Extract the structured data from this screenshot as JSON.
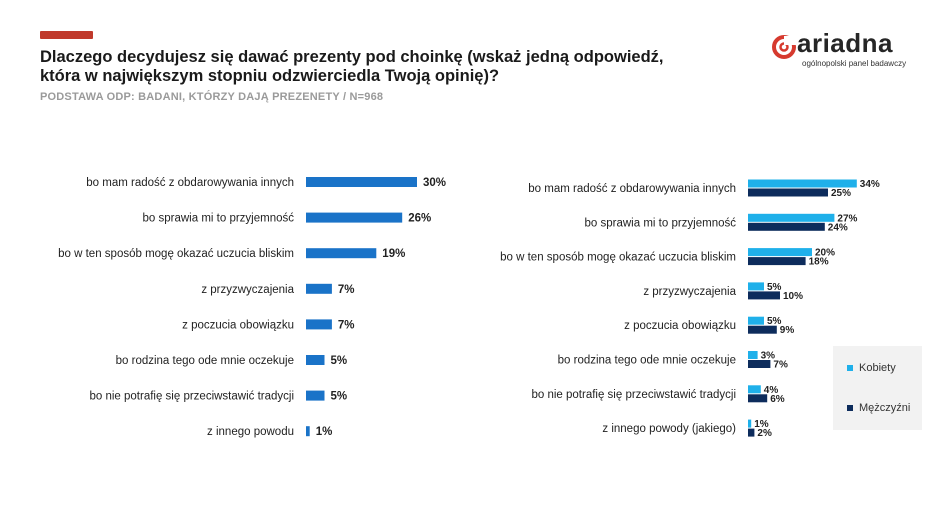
{
  "header": {
    "title": "Dlaczego decydujesz się dawać prezenty pod choinkę (wskaż jedną odpowiedź, która w największym stopniu odzwierciedla Twoją opinię)?",
    "base": "PODSTAWA ODP: BADANI, KTÓRZY DAJĄ PREZENETY / N=968"
  },
  "logo": {
    "name": "ariadna",
    "tagline": "ogólnopolski panel badawczy"
  },
  "colors": {
    "accent": "#c0392b",
    "total": "#1a73c8",
    "women": "#1fb0ea",
    "men": "#0d2c5c"
  },
  "chart_data": [
    {
      "type": "bar",
      "orientation": "horizontal",
      "title": "",
      "categories": [
        "bo mam radość z obdarowywania innych",
        "bo sprawia mi to przyjemność",
        "bo w ten sposób mogę okazać uczucia bliskim",
        "z przyzwyczajenia",
        "z poczucia obowiązku",
        "bo rodzina tego ode mnie oczekuje",
        "bo nie potrafię się przeciwstawić tradycji",
        "z innego powodu"
      ],
      "values": [
        30,
        26,
        19,
        7,
        7,
        5,
        5,
        1
      ],
      "labels": [
        "30%",
        "26%",
        "19%",
        "7%",
        "7%",
        "5%",
        "5%",
        "1%"
      ],
      "unit": "%"
    },
    {
      "type": "bar",
      "orientation": "horizontal",
      "title": "",
      "categories": [
        "bo mam radość z obdarowywania innych",
        "bo sprawia mi to przyjemność",
        "bo w ten sposób mogę okazać uczucia bliskim",
        "z przyzwyczajenia",
        "z poczucia obowiązku",
        "bo rodzina tego ode mnie oczekuje",
        "bo nie potrafię się przeciwstawić tradycji",
        "z innego powody (jakiego)"
      ],
      "series": [
        {
          "name": "Kobiety",
          "values": [
            34,
            27,
            20,
            5,
            5,
            3,
            4,
            1
          ],
          "labels": [
            "34%",
            "27%",
            "20%",
            "5%",
            "5%",
            "3%",
            "4%",
            "1%"
          ]
        },
        {
          "name": "Mężczyźni",
          "values": [
            25,
            24,
            18,
            10,
            9,
            7,
            6,
            2
          ],
          "labels": [
            "25%",
            "24%",
            "18%",
            "10%",
            "9%",
            "7%",
            "6%",
            "2%"
          ]
        }
      ],
      "legend": [
        "Kobiety",
        "Mężczyźni"
      ],
      "unit": "%"
    }
  ]
}
